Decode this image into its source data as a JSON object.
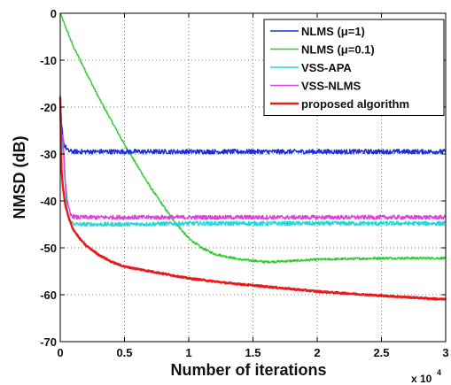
{
  "chart_data": {
    "type": "line",
    "xlabel": "Number of iterations",
    "ylabel": "NMSD (dB)",
    "x_multiplier_label": "x 10",
    "x_multiplier_exp": "4",
    "xlim": [
      0,
      3
    ],
    "ylim": [
      -70,
      0
    ],
    "x_ticks": [
      0,
      0.5,
      1,
      1.5,
      2,
      2.5,
      3
    ],
    "x_tick_labels": [
      "0",
      "0.5",
      "1",
      "1.5",
      "2",
      "2.5",
      "3"
    ],
    "y_ticks": [
      0,
      -10,
      -20,
      -30,
      -40,
      -50,
      -60,
      -70
    ],
    "y_tick_labels": [
      "0",
      "-10",
      "-20",
      "-30",
      "-40",
      "-50",
      "-60",
      "-70"
    ],
    "grid": true,
    "grid_style": "dotted",
    "legend_position": "top-right",
    "series": [
      {
        "name": "NLMS (μ=1)",
        "color": "#1f2fd6",
        "noise": 0.5,
        "x": [
          0,
          0.01,
          0.03,
          0.06,
          0.1,
          0.2,
          0.5,
          1.0,
          1.5,
          2.0,
          2.5,
          3.0
        ],
        "y": [
          -18,
          -24,
          -28,
          -29.3,
          -29.5,
          -29.5,
          -29.5,
          -29.5,
          -29.5,
          -29.5,
          -29.5,
          -29.5
        ]
      },
      {
        "name": "NLMS (μ=0.1)",
        "color": "#2ecc2e",
        "noise": 0.25,
        "x": [
          0,
          0.05,
          0.1,
          0.2,
          0.3,
          0.4,
          0.5,
          0.6,
          0.7,
          0.8,
          0.9,
          1.0,
          1.1,
          1.2,
          1.4,
          1.6,
          1.8,
          2.0,
          2.5,
          3.0
        ],
        "y": [
          0,
          -3.5,
          -7,
          -12.5,
          -18,
          -23,
          -28,
          -32.5,
          -37,
          -41,
          -44.8,
          -48,
          -50,
          -51.3,
          -52.5,
          -53,
          -52.8,
          -52.5,
          -52.2,
          -52.2
        ]
      },
      {
        "name": "VSS-APA",
        "color": "#22d8d8",
        "noise": 0.45,
        "x": [
          0,
          0.01,
          0.02,
          0.04,
          0.06,
          0.08,
          0.12,
          0.2,
          0.5,
          1.0,
          1.5,
          2.0,
          2.5,
          3.0
        ],
        "y": [
          -18,
          -30,
          -27,
          -38,
          -43,
          -44.5,
          -45,
          -45,
          -45,
          -44.8,
          -44.8,
          -44.8,
          -44.8,
          -44.8
        ]
      },
      {
        "name": "VSS-NLMS",
        "color": "#e040e0",
        "noise": 0.45,
        "x": [
          0,
          0.01,
          0.02,
          0.04,
          0.06,
          0.08,
          0.12,
          0.2,
          0.5,
          1.0,
          1.5,
          2.0,
          2.5,
          3.0
        ],
        "y": [
          -18,
          -28,
          -26,
          -36,
          -41,
          -43,
          -43.5,
          -43.5,
          -43.5,
          -43.5,
          -43.5,
          -43.5,
          -43.5,
          -43.5
        ]
      },
      {
        "name": "proposed algorithm",
        "color": "#e81a1a",
        "noise": 0.15,
        "x": [
          0,
          0.01,
          0.02,
          0.04,
          0.07,
          0.1,
          0.15,
          0.2,
          0.3,
          0.4,
          0.5,
          0.7,
          1.0,
          1.3,
          1.5,
          2.0,
          2.5,
          3.0
        ],
        "y": [
          -18,
          -33,
          -37,
          -41,
          -44,
          -46,
          -48,
          -49.5,
          -51.5,
          -53,
          -54,
          -55,
          -56.5,
          -57.5,
          -58,
          -59.3,
          -60.2,
          -61
        ]
      }
    ]
  }
}
